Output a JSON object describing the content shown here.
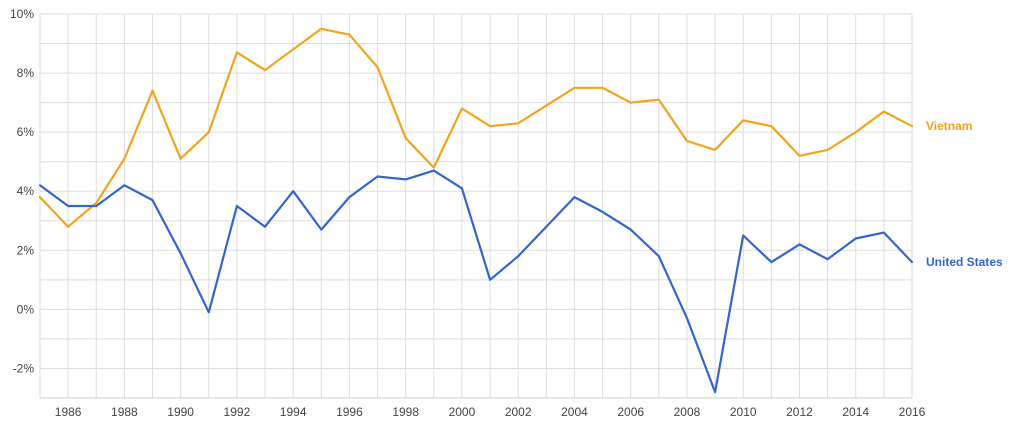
{
  "chart_data": {
    "type": "line",
    "title": "",
    "xlabel": "",
    "ylabel": "",
    "x": [
      1985,
      1986,
      1987,
      1988,
      1989,
      1990,
      1991,
      1992,
      1993,
      1994,
      1995,
      1996,
      1997,
      1998,
      1999,
      2000,
      2001,
      2002,
      2003,
      2004,
      2005,
      2006,
      2007,
      2008,
      2009,
      2010,
      2011,
      2012,
      2013,
      2014,
      2015,
      2016
    ],
    "x_ticks": [
      1986,
      1988,
      1990,
      1992,
      1994,
      1996,
      1998,
      2000,
      2002,
      2004,
      2006,
      2008,
      2010,
      2012,
      2014,
      2016
    ],
    "x_tick_labels": [
      "1986",
      "1988",
      "1990",
      "1992",
      "1994",
      "1996",
      "1998",
      "2000",
      "2002",
      "2004",
      "2006",
      "2008",
      "2010",
      "2012",
      "2014",
      "2016"
    ],
    "xlim": [
      1985,
      2016
    ],
    "ylim": [
      -3,
      10
    ],
    "y_ticks": [
      -2,
      0,
      2,
      4,
      6,
      8,
      10
    ],
    "y_tick_labels": [
      "-2%",
      "0%",
      "2%",
      "4%",
      "6%",
      "8%",
      "10%"
    ],
    "grid": true,
    "legend": "inline labels at right end of lines",
    "series": [
      {
        "name": "Vietnam",
        "color": "#f0a420",
        "values": [
          3.8,
          2.8,
          3.6,
          5.1,
          7.4,
          5.1,
          6.0,
          8.7,
          8.1,
          8.8,
          9.5,
          9.3,
          8.2,
          5.8,
          4.8,
          6.8,
          6.2,
          6.3,
          6.9,
          7.5,
          7.5,
          7.0,
          7.1,
          5.7,
          5.4,
          6.4,
          6.2,
          5.2,
          5.4,
          6.0,
          6.7,
          6.2
        ]
      },
      {
        "name": "United States",
        "color": "#3366cc",
        "values": [
          4.2,
          3.5,
          3.5,
          4.2,
          3.7,
          1.9,
          -0.1,
          3.5,
          2.8,
          4.0,
          2.7,
          3.8,
          4.5,
          4.4,
          4.7,
          4.1,
          1.0,
          1.8,
          2.8,
          3.8,
          3.3,
          2.7,
          1.8,
          -0.3,
          -2.8,
          2.5,
          1.6,
          2.2,
          1.7,
          2.4,
          2.6,
          1.6
        ]
      }
    ]
  }
}
